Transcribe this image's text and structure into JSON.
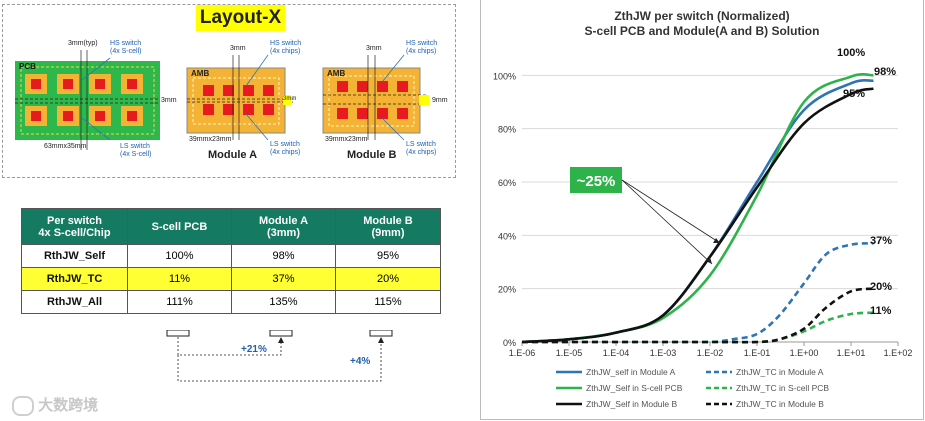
{
  "layout": {
    "title": "Layout-X",
    "pcb": {
      "label": "PCB",
      "dim": "63mmx35mm",
      "pitch": "3mm(typ)",
      "hs_switch": "HS switch",
      "hs_sub": "(4x S-cell)",
      "ls_switch": "LS switch",
      "ls_sub": "(4x S-cell)",
      "gap": "3mm"
    },
    "module_a": {
      "label": "AMB",
      "name": "Module A",
      "dim": "39mmx23mm",
      "pitch": "3mm",
      "hs_switch": "HS switch",
      "hs_sub": "(4x chips)",
      "ls_switch": "LS switch",
      "ls_sub": "(4x chips)",
      "gap": "3mm"
    },
    "module_b": {
      "label": "AMB",
      "name": "Module B",
      "dim": "39mmx23mm",
      "pitch": "3mm",
      "hs_switch": "HS switch",
      "hs_sub": "(4x chips)",
      "ls_switch": "LS switch",
      "ls_sub": "(4x chips)",
      "gap": "9mm"
    }
  },
  "table": {
    "header": {
      "c0_l1": "Per switch",
      "c0_l2": "4x S-cell/Chip",
      "c1": "S-cell PCB",
      "c2_l1": "Module A",
      "c2_l2": "(3mm)",
      "c3_l1": "Module B",
      "c3_l2": "(9mm)"
    },
    "rows": [
      {
        "label": "RthJW_Self",
        "v1": "100%",
        "v2": "98%",
        "v3": "95%"
      },
      {
        "label": "RthJW_TC",
        "v1": "11%",
        "v2": "37%",
        "v3": "20%"
      },
      {
        "label": "RthJW_All",
        "v1": "111%",
        "v2": "135%",
        "v3": "115%"
      }
    ],
    "delta_a": "+21%",
    "delta_b": "+4%"
  },
  "watermark": "大数跨境",
  "colors": {
    "pcb_green": "#2eb84b",
    "amb_orange": "#f5b335",
    "chip_red": "#e8191f",
    "teal": "#157a62",
    "yellow": "#ffff33",
    "series_blue": "#2e75b6",
    "series_green": "#2db34a",
    "series_black": "#111111"
  },
  "chart_data": {
    "type": "line",
    "title": "ZthJW per switch (Normalized)",
    "subtitle": "S-cell PCB and Module(A and B) Solution",
    "x_scale": "log",
    "xlim": [
      1e-06,
      100
    ],
    "ylim": [
      0,
      1.05
    ],
    "x_ticks": [
      "1.E-06",
      "1.E-05",
      "1.E-04",
      "1.E-03",
      "1.E-02",
      "1.E-01",
      "1.E+00",
      "1.E+01",
      "1.E+02"
    ],
    "y_ticks": [
      "0%",
      "20%",
      "40%",
      "60%",
      "80%",
      "100%"
    ],
    "annotations": {
      "callout": "~25%",
      "end_self_pcb": "100%",
      "end_self_a": "98%",
      "end_self_b": "95%",
      "end_tc_a": "37%",
      "end_tc_b": "20%",
      "end_tc_pcb": "11%"
    },
    "series": [
      {
        "name": "ZthJW_self in Module A",
        "color": "#2e75b6",
        "dash": false,
        "x": [
          1e-06,
          1e-05,
          0.0001,
          0.001,
          0.01,
          0.1,
          1,
          10,
          30
        ],
        "y": [
          0.0,
          0.01,
          0.035,
          0.1,
          0.32,
          0.6,
          0.87,
          0.97,
          0.98
        ]
      },
      {
        "name": "ZthJW_TC in Module A",
        "color": "#2e75b6",
        "dash": true,
        "x": [
          1e-06,
          0.001,
          0.01,
          0.03,
          0.1,
          0.3,
          1,
          3,
          10,
          30
        ],
        "y": [
          0.0,
          0.0,
          0.0,
          0.01,
          0.03,
          0.1,
          0.22,
          0.33,
          0.365,
          0.37
        ]
      },
      {
        "name": "ZthJW_Self in S-cell PCB",
        "color": "#2db34a",
        "dash": false,
        "x": [
          1e-06,
          1e-05,
          0.0001,
          0.001,
          0.01,
          0.1,
          1,
          10,
          30
        ],
        "y": [
          0.0,
          0.01,
          0.035,
          0.09,
          0.25,
          0.55,
          0.9,
          0.995,
          1.0
        ]
      },
      {
        "name": "ZthJW_TC in S-cell PCB",
        "color": "#2db34a",
        "dash": true,
        "x": [
          1e-06,
          0.01,
          0.1,
          0.3,
          1,
          3,
          10,
          30
        ],
        "y": [
          0.0,
          0.0,
          0.0,
          0.01,
          0.04,
          0.08,
          0.105,
          0.11
        ]
      },
      {
        "name": "ZthJW_Self in Module B",
        "color": "#111111",
        "dash": false,
        "x": [
          1e-06,
          1e-05,
          0.0001,
          0.001,
          0.01,
          0.1,
          1,
          10,
          30
        ],
        "y": [
          0.0,
          0.01,
          0.035,
          0.1,
          0.32,
          0.58,
          0.82,
          0.93,
          0.95
        ]
      },
      {
        "name": "ZthJW_TC in Module B",
        "color": "#111111",
        "dash": true,
        "x": [
          1e-06,
          0.01,
          0.1,
          0.3,
          1,
          3,
          10,
          30
        ],
        "y": [
          0.0,
          0.0,
          0.0,
          0.01,
          0.05,
          0.13,
          0.19,
          0.2
        ]
      }
    ]
  }
}
